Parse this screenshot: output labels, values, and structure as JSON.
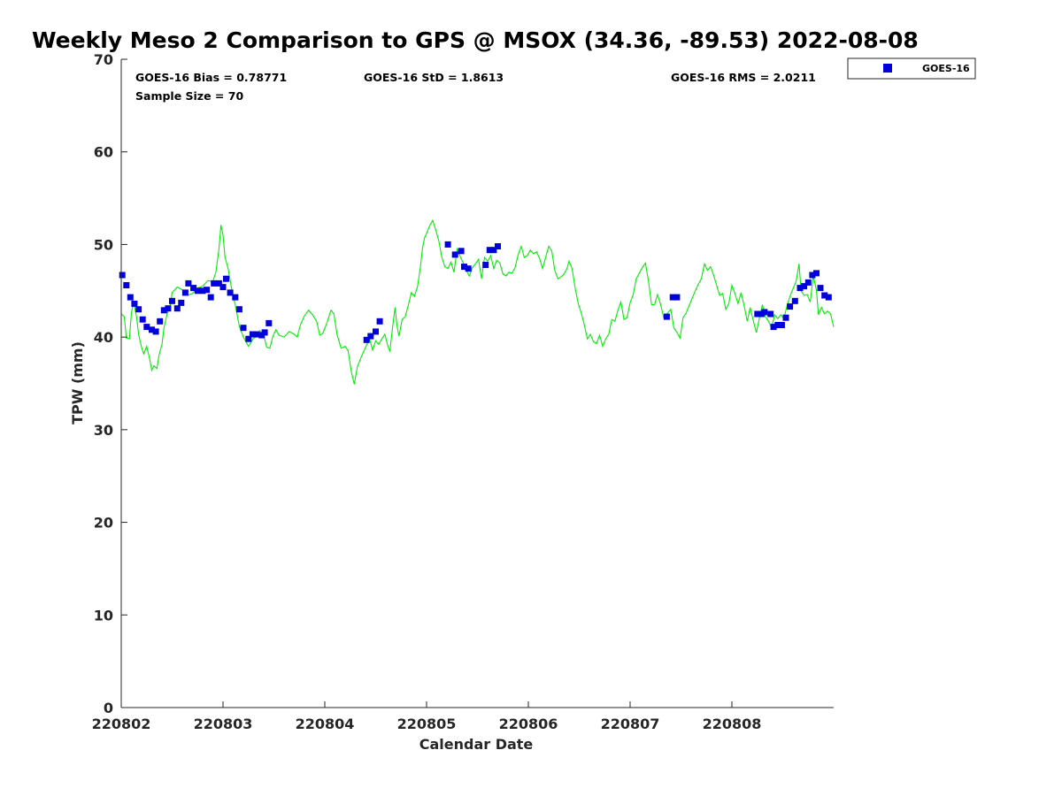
{
  "chart_data": {
    "type": "scatter",
    "title": "Weekly Meso 2 Comparison to GPS @ MSOX (34.36, -89.53) 2022-08-08",
    "xlabel": "Calendar Date",
    "ylabel": "TPW (mm)",
    "xlim": [
      0,
      7.0
    ],
    "ylim": [
      0,
      70
    ],
    "x_ticks": [
      {
        "value": 0,
        "label": "220802"
      },
      {
        "value": 1,
        "label": "220803"
      },
      {
        "value": 2,
        "label": "220804"
      },
      {
        "value": 3,
        "label": "220805"
      },
      {
        "value": 4,
        "label": "220806"
      },
      {
        "value": 5,
        "label": "220807"
      },
      {
        "value": 6,
        "label": "220808"
      }
    ],
    "y_ticks": [
      0,
      10,
      20,
      30,
      40,
      50,
      60,
      70
    ],
    "grid": false,
    "legend_position": "top-right",
    "stats": {
      "bias": "GOES-16 Bias = 0.78771",
      "std": "GOES-16 StD = 1.8613",
      "rms": "GOES-16 RMS = 2.0211",
      "sample": "Sample Size = 70"
    },
    "series": [
      {
        "name": "GOES-16",
        "kind": "scatter",
        "color": "#0000dd",
        "marker": "square",
        "points": [
          [
            0.01,
            46.7
          ],
          [
            0.05,
            45.6
          ],
          [
            0.09,
            44.3
          ],
          [
            0.13,
            43.6
          ],
          [
            0.17,
            43.0
          ],
          [
            0.21,
            41.9
          ],
          [
            0.25,
            41.1
          ],
          [
            0.3,
            40.8
          ],
          [
            0.34,
            40.6
          ],
          [
            0.38,
            41.7
          ],
          [
            0.42,
            42.9
          ],
          [
            0.46,
            43.1
          ],
          [
            0.5,
            43.9
          ],
          [
            0.55,
            43.1
          ],
          [
            0.59,
            43.7
          ],
          [
            0.63,
            44.8
          ],
          [
            0.66,
            45.8
          ],
          [
            0.71,
            45.3
          ],
          [
            0.75,
            45.0
          ],
          [
            0.8,
            45.0
          ],
          [
            0.84,
            45.1
          ],
          [
            0.88,
            44.3
          ],
          [
            0.91,
            45.8
          ],
          [
            0.96,
            45.8
          ],
          [
            1.0,
            45.4
          ],
          [
            1.03,
            46.3
          ],
          [
            1.07,
            44.8
          ],
          [
            1.12,
            44.3
          ],
          [
            1.16,
            43.0
          ],
          [
            1.2,
            41.0
          ],
          [
            1.25,
            39.8
          ],
          [
            1.29,
            40.3
          ],
          [
            1.33,
            40.3
          ],
          [
            1.38,
            40.2
          ],
          [
            1.41,
            40.5
          ],
          [
            1.45,
            41.5
          ],
          [
            2.41,
            39.7
          ],
          [
            2.45,
            40.1
          ],
          [
            2.5,
            40.6
          ],
          [
            2.54,
            41.7
          ],
          [
            3.21,
            50.0
          ],
          [
            3.28,
            48.9
          ],
          [
            3.34,
            49.3
          ],
          [
            3.37,
            47.6
          ],
          [
            3.41,
            47.4
          ],
          [
            3.58,
            47.8
          ],
          [
            3.62,
            49.4
          ],
          [
            3.66,
            49.4
          ],
          [
            3.7,
            49.8
          ],
          [
            5.36,
            42.2
          ],
          [
            5.42,
            44.3
          ],
          [
            5.46,
            44.3
          ],
          [
            6.25,
            42.5
          ],
          [
            6.29,
            42.5
          ],
          [
            6.32,
            42.7
          ],
          [
            6.38,
            42.5
          ],
          [
            6.41,
            41.1
          ],
          [
            6.45,
            41.3
          ],
          [
            6.49,
            41.3
          ],
          [
            6.53,
            42.1
          ],
          [
            6.57,
            43.3
          ],
          [
            6.62,
            43.9
          ],
          [
            6.67,
            45.3
          ],
          [
            6.71,
            45.5
          ],
          [
            6.75,
            45.9
          ],
          [
            6.79,
            46.7
          ],
          [
            6.83,
            46.9
          ],
          [
            6.87,
            45.3
          ],
          [
            6.91,
            44.5
          ],
          [
            6.95,
            44.3
          ]
        ]
      },
      {
        "kind": "line",
        "color": "#00ee00",
        "points": [
          [
            0.0,
            42.5
          ],
          [
            0.03,
            42.2
          ],
          [
            0.05,
            39.9
          ],
          [
            0.08,
            39.8
          ],
          [
            0.1,
            42.6
          ],
          [
            0.12,
            43.8
          ],
          [
            0.15,
            42.2
          ],
          [
            0.17,
            40.3
          ],
          [
            0.2,
            38.9
          ],
          [
            0.22,
            38.2
          ],
          [
            0.25,
            39.0
          ],
          [
            0.28,
            37.6
          ],
          [
            0.3,
            36.4
          ],
          [
            0.32,
            36.9
          ],
          [
            0.35,
            36.6
          ],
          [
            0.37,
            38.0
          ],
          [
            0.4,
            39.2
          ],
          [
            0.42,
            41.0
          ],
          [
            0.45,
            42.5
          ],
          [
            0.48,
            43.3
          ],
          [
            0.5,
            44.8
          ],
          [
            0.55,
            45.4
          ],
          [
            0.6,
            45.1
          ],
          [
            0.65,
            44.5
          ],
          [
            0.7,
            44.7
          ],
          [
            0.75,
            45.3
          ],
          [
            0.8,
            45.5
          ],
          [
            0.85,
            46.1
          ],
          [
            0.9,
            46.0
          ],
          [
            0.93,
            47.0
          ],
          [
            0.96,
            49.5
          ],
          [
            0.98,
            52.1
          ],
          [
            1.0,
            51.0
          ],
          [
            1.02,
            48.6
          ],
          [
            1.05,
            47.4
          ],
          [
            1.08,
            45.5
          ],
          [
            1.12,
            43.5
          ],
          [
            1.16,
            41.2
          ],
          [
            1.2,
            40.0
          ],
          [
            1.25,
            39.0
          ],
          [
            1.3,
            39.9
          ],
          [
            1.33,
            40.0
          ],
          [
            1.36,
            40.7
          ],
          [
            1.4,
            40.2
          ],
          [
            1.43,
            38.9
          ],
          [
            1.46,
            38.8
          ],
          [
            1.49,
            40.1
          ],
          [
            1.52,
            40.8
          ],
          [
            1.55,
            40.2
          ],
          [
            1.6,
            40.0
          ],
          [
            1.65,
            40.6
          ],
          [
            1.7,
            40.3
          ],
          [
            1.73,
            40.0
          ],
          [
            1.76,
            41.3
          ],
          [
            1.8,
            42.3
          ],
          [
            1.84,
            42.9
          ],
          [
            1.88,
            42.4
          ],
          [
            1.92,
            41.7
          ],
          [
            1.95,
            40.2
          ],
          [
            1.98,
            40.4
          ],
          [
            2.02,
            41.5
          ],
          [
            2.06,
            42.9
          ],
          [
            2.09,
            42.5
          ],
          [
            2.12,
            40.3
          ],
          [
            2.16,
            38.8
          ],
          [
            2.2,
            39.0
          ],
          [
            2.23,
            38.5
          ],
          [
            2.26,
            36.3
          ],
          [
            2.29,
            34.9
          ],
          [
            2.32,
            36.8
          ],
          [
            2.36,
            37.9
          ],
          [
            2.4,
            38.9
          ],
          [
            2.44,
            39.8
          ],
          [
            2.47,
            38.6
          ],
          [
            2.5,
            39.6
          ],
          [
            2.53,
            39.2
          ],
          [
            2.56,
            39.8
          ],
          [
            2.59,
            40.3
          ],
          [
            2.62,
            39.0
          ],
          [
            2.64,
            38.5
          ],
          [
            2.66,
            40.5
          ],
          [
            2.69,
            43.2
          ],
          [
            2.71,
            41.2
          ],
          [
            2.73,
            40.1
          ],
          [
            2.76,
            41.9
          ],
          [
            2.79,
            42.2
          ],
          [
            2.82,
            43.4
          ],
          [
            2.85,
            44.8
          ],
          [
            2.88,
            44.4
          ],
          [
            2.91,
            45.4
          ],
          [
            2.94,
            47.6
          ],
          [
            2.96,
            49.6
          ],
          [
            2.98,
            50.7
          ],
          [
            3.0,
            51.2
          ],
          [
            3.03,
            52.0
          ],
          [
            3.06,
            52.6
          ],
          [
            3.09,
            51.6
          ],
          [
            3.12,
            50.4
          ],
          [
            3.15,
            48.6
          ],
          [
            3.18,
            47.6
          ],
          [
            3.21,
            47.4
          ],
          [
            3.24,
            48.1
          ],
          [
            3.27,
            47.0
          ],
          [
            3.3,
            49.5
          ],
          [
            3.33,
            48.7
          ],
          [
            3.36,
            48.0
          ],
          [
            3.39,
            47.2
          ],
          [
            3.42,
            46.6
          ],
          [
            3.45,
            47.5
          ],
          [
            3.48,
            47.9
          ],
          [
            3.51,
            48.4
          ],
          [
            3.54,
            46.3
          ],
          [
            3.57,
            48.6
          ],
          [
            3.6,
            48.2
          ],
          [
            3.63,
            48.8
          ],
          [
            3.66,
            47.4
          ],
          [
            3.69,
            48.3
          ],
          [
            3.72,
            48.0
          ],
          [
            3.75,
            46.8
          ],
          [
            3.78,
            46.6
          ],
          [
            3.81,
            47.0
          ],
          [
            3.84,
            46.9
          ],
          [
            3.87,
            47.5
          ],
          [
            3.9,
            48.9
          ],
          [
            3.93,
            49.8
          ],
          [
            3.96,
            48.6
          ],
          [
            3.99,
            48.8
          ],
          [
            4.02,
            49.4
          ],
          [
            4.05,
            49.0
          ],
          [
            4.08,
            49.2
          ],
          [
            4.11,
            48.5
          ],
          [
            4.14,
            47.4
          ],
          [
            4.17,
            48.6
          ],
          [
            4.2,
            49.8
          ],
          [
            4.23,
            49.3
          ],
          [
            4.26,
            47.2
          ],
          [
            4.29,
            46.3
          ],
          [
            4.32,
            46.5
          ],
          [
            4.35,
            46.8
          ],
          [
            4.38,
            47.4
          ],
          [
            4.4,
            48.2
          ],
          [
            4.43,
            47.4
          ],
          [
            4.46,
            45.3
          ],
          [
            4.49,
            43.6
          ],
          [
            4.52,
            42.6
          ],
          [
            4.55,
            41.3
          ],
          [
            4.58,
            39.8
          ],
          [
            4.61,
            40.3
          ],
          [
            4.64,
            39.5
          ],
          [
            4.67,
            39.3
          ],
          [
            4.7,
            40.2
          ],
          [
            4.73,
            39.0
          ],
          [
            4.76,
            39.8
          ],
          [
            4.79,
            40.3
          ],
          [
            4.82,
            41.9
          ],
          [
            4.85,
            41.7
          ],
          [
            4.88,
            42.9
          ],
          [
            4.91,
            43.8
          ],
          [
            4.94,
            41.9
          ],
          [
            4.97,
            42.1
          ],
          [
            5.0,
            43.7
          ],
          [
            5.03,
            44.6
          ],
          [
            5.06,
            46.3
          ],
          [
            5.09,
            46.9
          ],
          [
            5.12,
            47.5
          ],
          [
            5.15,
            48.0
          ],
          [
            5.18,
            46.1
          ],
          [
            5.21,
            43.5
          ],
          [
            5.24,
            43.5
          ],
          [
            5.27,
            44.6
          ],
          [
            5.3,
            43.5
          ],
          [
            5.33,
            42.1
          ],
          [
            5.36,
            42.5
          ],
          [
            5.4,
            43.0
          ],
          [
            5.43,
            41.0
          ],
          [
            5.46,
            40.5
          ],
          [
            5.49,
            39.9
          ],
          [
            5.52,
            42.1
          ],
          [
            5.55,
            42.6
          ],
          [
            5.58,
            43.4
          ],
          [
            5.61,
            44.2
          ],
          [
            5.64,
            45.0
          ],
          [
            5.67,
            45.7
          ],
          [
            5.7,
            46.3
          ],
          [
            5.73,
            47.9
          ],
          [
            5.76,
            47.2
          ],
          [
            5.79,
            47.6
          ],
          [
            5.82,
            46.7
          ],
          [
            5.85,
            45.6
          ],
          [
            5.88,
            44.5
          ],
          [
            5.91,
            44.7
          ],
          [
            5.94,
            43.0
          ],
          [
            5.97,
            43.6
          ],
          [
            6.0,
            45.6
          ],
          [
            6.03,
            44.7
          ],
          [
            6.06,
            43.6
          ],
          [
            6.09,
            44.8
          ],
          [
            6.12,
            43.4
          ],
          [
            6.15,
            41.7
          ],
          [
            6.18,
            43.2
          ],
          [
            6.21,
            41.8
          ],
          [
            6.24,
            40.5
          ],
          [
            6.27,
            42.0
          ],
          [
            6.3,
            43.5
          ],
          [
            6.33,
            42.2
          ],
          [
            6.36,
            41.7
          ],
          [
            6.39,
            41.0
          ],
          [
            6.42,
            42.4
          ],
          [
            6.45,
            42.0
          ],
          [
            6.48,
            42.4
          ],
          [
            6.51,
            42.0
          ],
          [
            6.54,
            43.3
          ],
          [
            6.57,
            44.4
          ],
          [
            6.6,
            45.2
          ],
          [
            6.63,
            46.0
          ],
          [
            6.66,
            47.9
          ],
          [
            6.68,
            45.0
          ],
          [
            6.71,
            44.5
          ],
          [
            6.74,
            44.6
          ],
          [
            6.77,
            43.8
          ],
          [
            6.8,
            46.6
          ],
          [
            6.83,
            45.1
          ],
          [
            6.85,
            42.4
          ],
          [
            6.88,
            43.2
          ],
          [
            6.91,
            42.5
          ],
          [
            6.94,
            42.8
          ],
          [
            6.97,
            42.5
          ],
          [
            7.0,
            41.1
          ]
        ]
      }
    ]
  }
}
